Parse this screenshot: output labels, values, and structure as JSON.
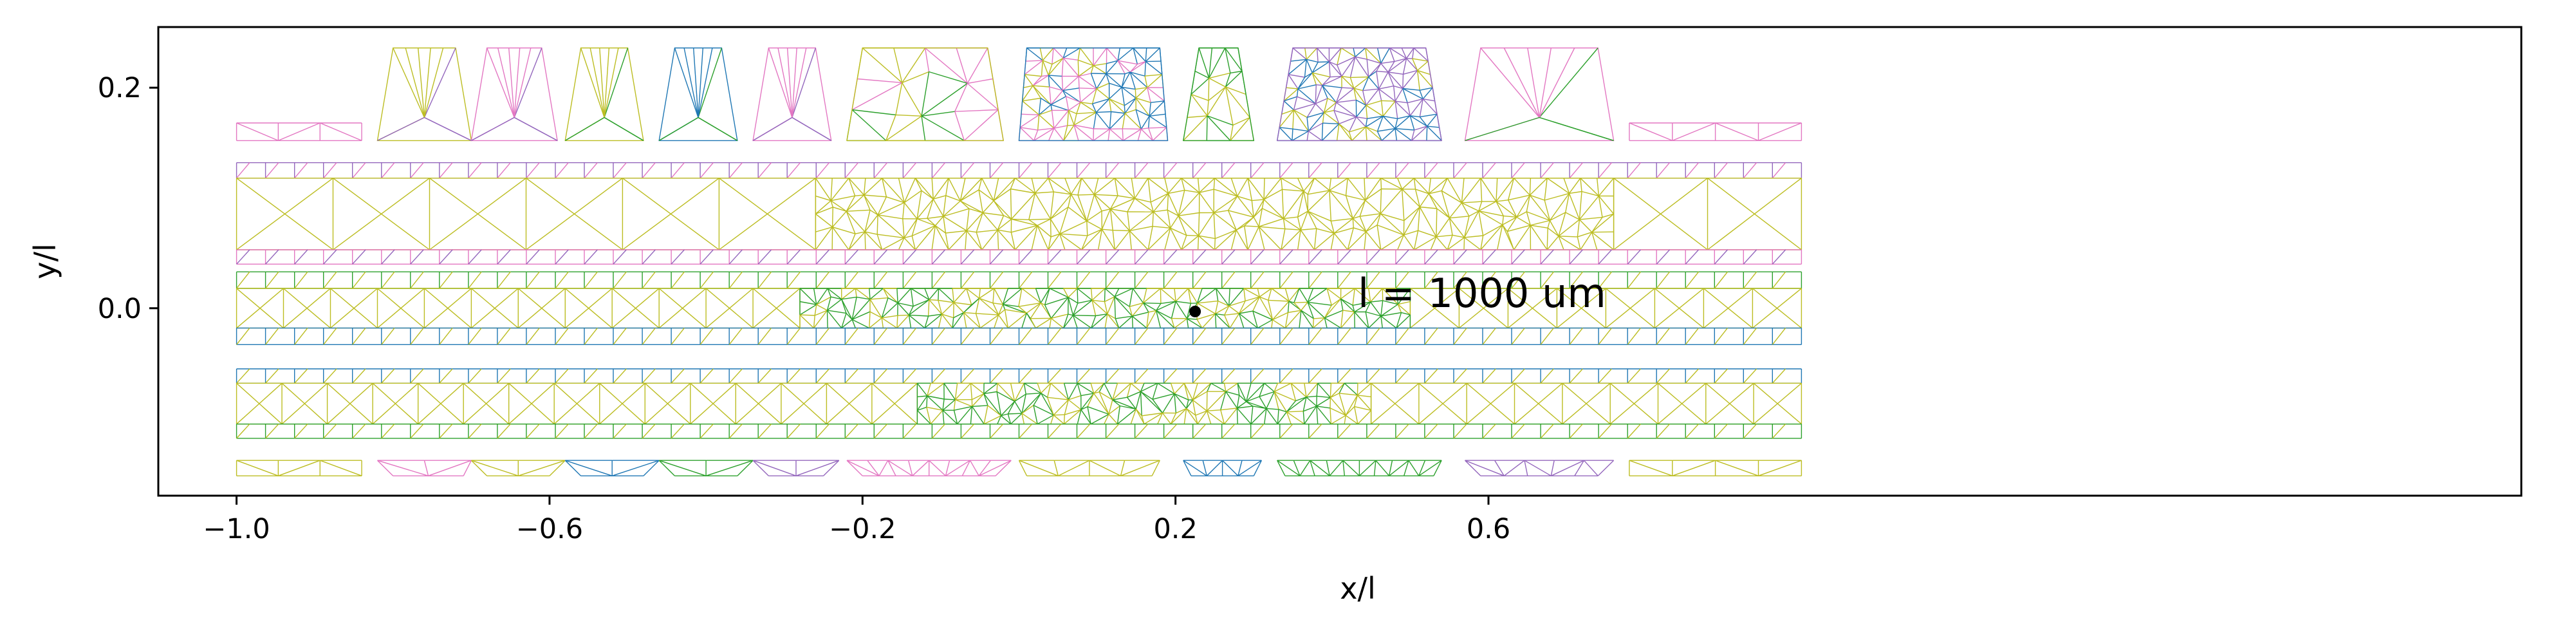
{
  "chart_data": {
    "type": "diagram",
    "xlabel": "x/l",
    "ylabel": "y/l",
    "xlim": [
      -1.1,
      1.92
    ],
    "ylim": [
      -0.17,
      0.255
    ],
    "x_ticks": [
      {
        "value": -1.0,
        "label": "−1.0"
      },
      {
        "value": -0.6,
        "label": "−0.6"
      },
      {
        "value": -0.2,
        "label": "−0.2"
      },
      {
        "value": 0.2,
        "label": "0.2"
      },
      {
        "value": 0.6,
        "label": "0.6"
      }
    ],
    "y_ticks": [
      {
        "value": 0.0,
        "label": "0.0"
      },
      {
        "value": 0.2,
        "label": "0.2"
      }
    ],
    "annotation": {
      "text": "l = 1000 um",
      "x": -0.2,
      "y": 0.0
    },
    "marker": {
      "x": 0.225,
      "y": -0.003
    },
    "colors": {
      "blue": "#1f77b4",
      "green": "#2ca02c",
      "purple": "#9467bd",
      "pink": "#e377c2",
      "olive": "#bcbd22"
    },
    "meshes": [
      {
        "kind": "pad",
        "x0": -1.0,
        "x1": -0.84,
        "y0": 0.152,
        "y1": 0.168,
        "color": "pink",
        "density": 2
      },
      {
        "kind": "trap",
        "xb0": -0.82,
        "xb1": -0.7,
        "xt0": -0.8,
        "xt1": -0.72,
        "y0": 0.152,
        "y1": 0.236,
        "colors": [
          "olive",
          "purple"
        ],
        "density": 1
      },
      {
        "kind": "trap",
        "xb0": -0.7,
        "xb1": -0.59,
        "xt0": -0.68,
        "xt1": -0.61,
        "y0": 0.152,
        "y1": 0.236,
        "colors": [
          "pink",
          "purple"
        ],
        "density": 1
      },
      {
        "kind": "trap",
        "xb0": -0.58,
        "xb1": -0.48,
        "xt0": -0.56,
        "xt1": -0.5,
        "y0": 0.152,
        "y1": 0.236,
        "colors": [
          "olive",
          "green"
        ],
        "density": 1
      },
      {
        "kind": "trap",
        "xb0": -0.46,
        "xb1": -0.36,
        "xt0": -0.44,
        "xt1": -0.38,
        "y0": 0.152,
        "y1": 0.236,
        "colors": [
          "blue",
          "green"
        ],
        "density": 1
      },
      {
        "kind": "trap",
        "xb0": -0.34,
        "xb1": -0.24,
        "xt0": -0.32,
        "xt1": -0.26,
        "y0": 0.152,
        "y1": 0.236,
        "colors": [
          "pink",
          "purple"
        ],
        "density": 1
      },
      {
        "kind": "trap",
        "xb0": -0.22,
        "xb1": -0.02,
        "xt0": -0.2,
        "xt1": -0.04,
        "y0": 0.152,
        "y1": 0.236,
        "colors": [
          "olive",
          "green",
          "pink"
        ],
        "density": 2
      },
      {
        "kind": "trap",
        "xb0": 0.0,
        "xb1": 0.19,
        "xt0": 0.01,
        "xt1": 0.18,
        "y0": 0.152,
        "y1": 0.236,
        "colors": [
          "blue",
          "pink",
          "olive"
        ],
        "density": 5
      },
      {
        "kind": "trap",
        "xb0": 0.21,
        "xb1": 0.3,
        "xt0": 0.23,
        "xt1": 0.28,
        "y0": 0.152,
        "y1": 0.236,
        "colors": [
          "green",
          "olive"
        ],
        "density": 3
      },
      {
        "kind": "trap",
        "xb0": 0.33,
        "xb1": 0.54,
        "xt0": 0.35,
        "xt1": 0.52,
        "y0": 0.152,
        "y1": 0.236,
        "colors": [
          "purple",
          "blue",
          "olive"
        ],
        "density": 5
      },
      {
        "kind": "trap",
        "xb0": 0.57,
        "xb1": 0.76,
        "xt0": 0.59,
        "xt1": 0.74,
        "y0": 0.152,
        "y1": 0.236,
        "colors": [
          "pink",
          "green"
        ],
        "density": 1
      },
      {
        "kind": "pad",
        "x0": 0.78,
        "x1": 1.0,
        "y0": 0.152,
        "y1": 0.168,
        "color": "pink",
        "density": 2
      },
      {
        "kind": "strip",
        "x0": -1.0,
        "x1": 1.0,
        "y0": 0.118,
        "y1": 0.132,
        "colors": [
          "purple",
          "pink"
        ],
        "cell": 0.037
      },
      {
        "kind": "band",
        "x0": -1.0,
        "x1": 1.0,
        "y0": 0.053,
        "y1": 0.118,
        "colors": [
          "olive"
        ],
        "coarse_cell": 0.115,
        "fine_x0": -0.26,
        "fine_x1": 0.76,
        "fine_cols": 48,
        "fine_rows": 4
      },
      {
        "kind": "strip",
        "x0": -1.0,
        "x1": 1.0,
        "y0": 0.053,
        "y1": 0.04,
        "colors": [
          "pink",
          "purple"
        ],
        "cell": 0.037
      },
      {
        "kind": "strip",
        "x0": -1.0,
        "x1": 1.0,
        "y0": 0.018,
        "y1": 0.033,
        "colors": [
          "green",
          "olive"
        ],
        "cell": 0.037
      },
      {
        "kind": "band",
        "x0": -1.0,
        "x1": 1.0,
        "y0": -0.018,
        "y1": 0.018,
        "colors": [
          "olive",
          "green"
        ],
        "coarse_cell": 0.06,
        "fine_x0": -0.28,
        "fine_x1": 0.5,
        "fine_cols": 44,
        "fine_rows": 3
      },
      {
        "kind": "strip",
        "x0": -1.0,
        "x1": 1.0,
        "y0": -0.018,
        "y1": -0.033,
        "colors": [
          "blue",
          "olive"
        ],
        "cell": 0.037
      },
      {
        "kind": "strip",
        "x0": -1.0,
        "x1": 1.0,
        "y0": -0.055,
        "y1": -0.068,
        "colors": [
          "blue",
          "olive"
        ],
        "cell": 0.037
      },
      {
        "kind": "band",
        "x0": -1.0,
        "x1": 1.0,
        "y0": -0.068,
        "y1": -0.105,
        "colors": [
          "olive",
          "green"
        ],
        "coarse_cell": 0.06,
        "fine_x0": -0.13,
        "fine_x1": 0.45,
        "fine_cols": 34,
        "fine_rows": 3
      },
      {
        "kind": "strip",
        "x0": -1.0,
        "x1": 1.0,
        "y0": -0.105,
        "y1": -0.118,
        "colors": [
          "green",
          "olive"
        ],
        "cell": 0.037
      },
      {
        "kind": "pad",
        "x0": -1.0,
        "x1": -0.84,
        "y0": -0.152,
        "y1": -0.138,
        "color": "olive",
        "density": 2
      },
      {
        "kind": "trapdown",
        "xb0": -0.8,
        "xb1": -0.71,
        "xt0": -0.82,
        "xt1": -0.7,
        "y0": -0.152,
        "y1": -0.138,
        "color": "pink",
        "density": 1
      },
      {
        "kind": "trapdown",
        "xb0": -0.68,
        "xb1": -0.6,
        "xt0": -0.7,
        "xt1": -0.58,
        "y0": -0.152,
        "y1": -0.138,
        "color": "olive",
        "density": 1
      },
      {
        "kind": "trapdown",
        "xb0": -0.56,
        "xb1": -0.48,
        "xt0": -0.58,
        "xt1": -0.46,
        "y0": -0.152,
        "y1": -0.138,
        "color": "blue",
        "density": 1
      },
      {
        "kind": "trapdown",
        "xb0": -0.44,
        "xb1": -0.36,
        "xt0": -0.46,
        "xt1": -0.34,
        "y0": -0.152,
        "y1": -0.138,
        "color": "green",
        "density": 1
      },
      {
        "kind": "trapdown",
        "xb0": -0.32,
        "xb1": -0.25,
        "xt0": -0.34,
        "xt1": -0.23,
        "y0": -0.152,
        "y1": -0.138,
        "color": "purple",
        "density": 1
      },
      {
        "kind": "trapdown",
        "xb0": -0.2,
        "xb1": -0.03,
        "xt0": -0.22,
        "xt1": -0.01,
        "y0": -0.152,
        "y1": -0.138,
        "color": "pink",
        "density": 3
      },
      {
        "kind": "trapdown",
        "xb0": 0.01,
        "xb1": 0.17,
        "xt0": 0.0,
        "xt1": 0.18,
        "y0": -0.152,
        "y1": -0.138,
        "color": "olive",
        "density": 2
      },
      {
        "kind": "trapdown",
        "xb0": 0.22,
        "xb1": 0.3,
        "xt0": 0.21,
        "xt1": 0.31,
        "y0": -0.152,
        "y1": -0.138,
        "color": "blue",
        "density": 3
      },
      {
        "kind": "trapdown",
        "xb0": 0.34,
        "xb1": 0.53,
        "xt0": 0.33,
        "xt1": 0.54,
        "y0": -0.152,
        "y1": -0.138,
        "color": "green",
        "density": 4
      },
      {
        "kind": "trapdown",
        "xb0": 0.59,
        "xb1": 0.74,
        "xt0": 0.57,
        "xt1": 0.76,
        "y0": -0.152,
        "y1": -0.138,
        "color": "purple",
        "density": 2
      },
      {
        "kind": "pad",
        "x0": 0.78,
        "x1": 1.0,
        "y0": -0.152,
        "y1": -0.138,
        "color": "olive",
        "density": 2
      }
    ]
  }
}
